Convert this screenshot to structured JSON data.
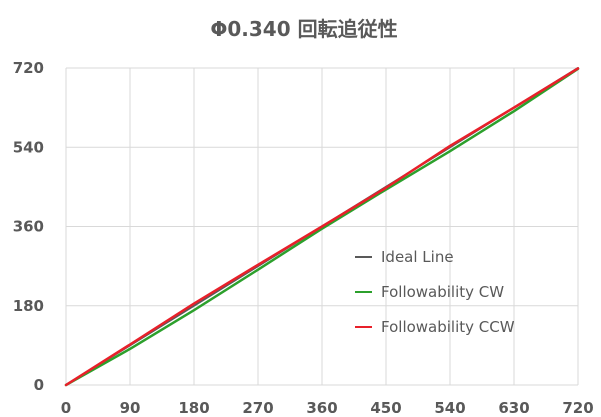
{
  "chart_data": {
    "type": "line",
    "title": "Φ0.340 回転追従性",
    "xlabel": "",
    "ylabel": "",
    "xlim": [
      0,
      720
    ],
    "ylim": [
      0,
      720
    ],
    "x_ticks": [
      "0",
      "90",
      "180",
      "270",
      "360",
      "450",
      "540",
      "630",
      "720"
    ],
    "y_ticks": [
      "0",
      "180",
      "360",
      "540",
      "720"
    ],
    "grid": true,
    "legend_position": "bottom-right",
    "series": [
      {
        "name": "Ideal Line",
        "color": "#595959",
        "points": [
          [
            0,
            0
          ],
          [
            720,
            720
          ]
        ]
      },
      {
        "name": "Followability CW",
        "color": "#2ca02c",
        "points": [
          [
            0,
            0
          ],
          [
            90,
            82
          ],
          [
            180,
            170
          ],
          [
            270,
            262
          ],
          [
            360,
            355
          ],
          [
            450,
            444
          ],
          [
            540,
            531
          ],
          [
            630,
            622
          ],
          [
            720,
            718
          ]
        ]
      },
      {
        "name": "Followability CCW",
        "color": "#e8202a",
        "points": [
          [
            0,
            0
          ],
          [
            90,
            92
          ],
          [
            180,
            185
          ],
          [
            270,
            273
          ],
          [
            360,
            360
          ],
          [
            450,
            448
          ],
          [
            540,
            543
          ],
          [
            630,
            630
          ],
          [
            720,
            719
          ]
        ]
      }
    ]
  }
}
